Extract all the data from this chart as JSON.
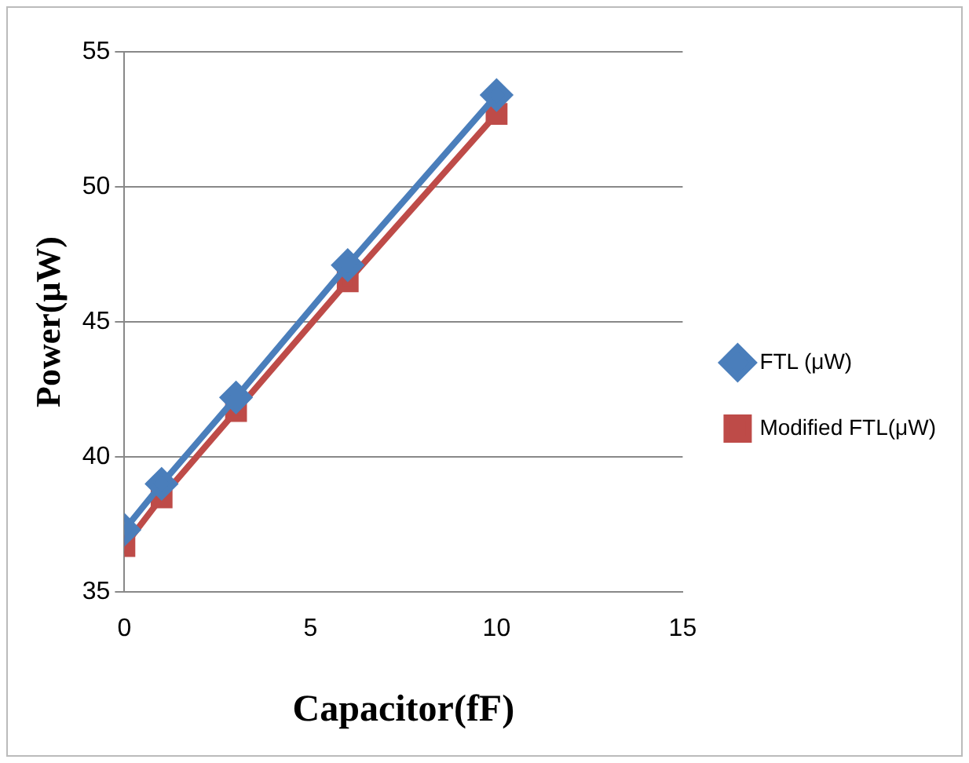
{
  "chart_data": {
    "type": "line",
    "xlabel": "Capacitor(fF)",
    "ylabel": "Power(μW)",
    "xlim": [
      0,
      15
    ],
    "xticks": [
      0,
      5,
      10,
      15
    ],
    "ylim": [
      35,
      55
    ],
    "yticks": [
      35,
      40,
      45,
      50,
      55
    ],
    "grid": "y",
    "legend": "right",
    "line_style": "solid",
    "series": [
      {
        "name": "FTL (μW)",
        "color": "#4a7ebb",
        "marker": "diamond",
        "x": [
          0,
          1,
          3,
          6,
          10
        ],
        "values": [
          37.3,
          39.0,
          42.2,
          47.1,
          53.4
        ]
      },
      {
        "name": "Modified FTL(μW)",
        "color": "#be4b48",
        "marker": "square",
        "x": [
          0,
          1,
          3,
          6,
          10
        ],
        "values": [
          36.7,
          38.5,
          41.7,
          46.5,
          52.7
        ]
      }
    ]
  }
}
